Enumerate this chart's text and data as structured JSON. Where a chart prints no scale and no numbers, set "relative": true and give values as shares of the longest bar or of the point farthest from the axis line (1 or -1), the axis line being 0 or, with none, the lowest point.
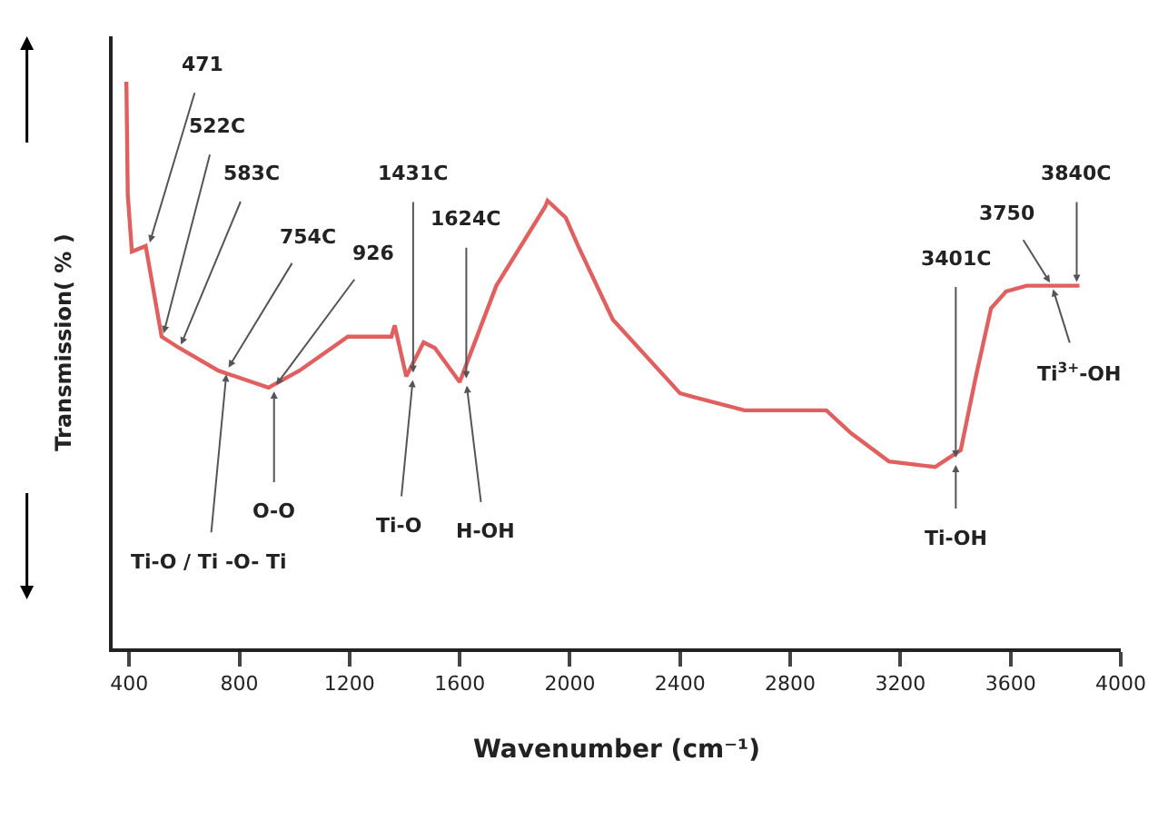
{
  "chart_data": {
    "type": "line",
    "relative": true,
    "xlabel": "Wavenumber (cm⁻¹)",
    "ylabel": "Transmission( % )",
    "x": [
      390,
      395,
      410,
      460,
      518,
      582,
      724,
      906,
      1018,
      1194,
      1352,
      1364,
      1406,
      1469,
      1510,
      1600,
      1733,
      1911,
      1919,
      1985,
      2030,
      2156,
      2400,
      2634,
      2931,
      3020,
      3158,
      3326,
      3419,
      3474,
      3529,
      3584,
      3658,
      3761,
      3850
    ],
    "series": [
      {
        "color": "#e06060",
        "values": [
          1.0,
          0.8,
          0.7,
          0.71,
          0.55,
          0.53,
          0.49,
          0.46,
          0.49,
          0.55,
          0.55,
          0.57,
          0.48,
          0.54,
          0.53,
          0.47,
          0.64,
          0.78,
          0.79,
          0.76,
          0.71,
          0.58,
          0.45,
          0.42,
          0.42,
          0.38,
          0.33,
          0.32,
          0.35,
          0.48,
          0.6,
          0.63,
          0.64,
          0.64,
          0.64
        ]
      }
    ],
    "xlim": [
      340,
      4000
    ],
    "xticks": [
      400,
      800,
      1200,
      1600,
      2000,
      2400,
      2800,
      3200,
      3600,
      4000
    ],
    "marker": "none",
    "line_style": "solid",
    "annotations": [
      {
        "text": "471",
        "x": 471,
        "y": 0.71
      },
      {
        "text": "522C",
        "x": 522,
        "y": 0.55
      },
      {
        "text": "583C",
        "x": 583,
        "y": 0.53
      },
      {
        "text": "754C",
        "x": 754,
        "y": 0.49
      },
      {
        "text": "926",
        "x": 926,
        "y": 0.46
      },
      {
        "text": "1431C",
        "x": 1431,
        "y": 0.48
      },
      {
        "text": "1624C",
        "x": 1624,
        "y": 0.47
      },
      {
        "text": "3401C",
        "x": 3401,
        "y": 0.33
      },
      {
        "text": "3750",
        "x": 3750,
        "y": 0.64
      },
      {
        "text": "3840C",
        "x": 3840,
        "y": 0.64
      },
      {
        "text": "Ti-O / Ti -O- Ti",
        "x": 754,
        "y": 0.49
      },
      {
        "text": "O-O",
        "x": 926,
        "y": 0.46
      },
      {
        "text": "Ti-O",
        "x": 1431,
        "y": 0.48
      },
      {
        "text": "H-OH",
        "x": 1624,
        "y": 0.47
      },
      {
        "text": "Ti-OH",
        "x": 3401,
        "y": 0.33
      },
      {
        "text": "Ti$^{3+}$-OH",
        "x": 3750,
        "y": 0.64
      }
    ]
  }
}
